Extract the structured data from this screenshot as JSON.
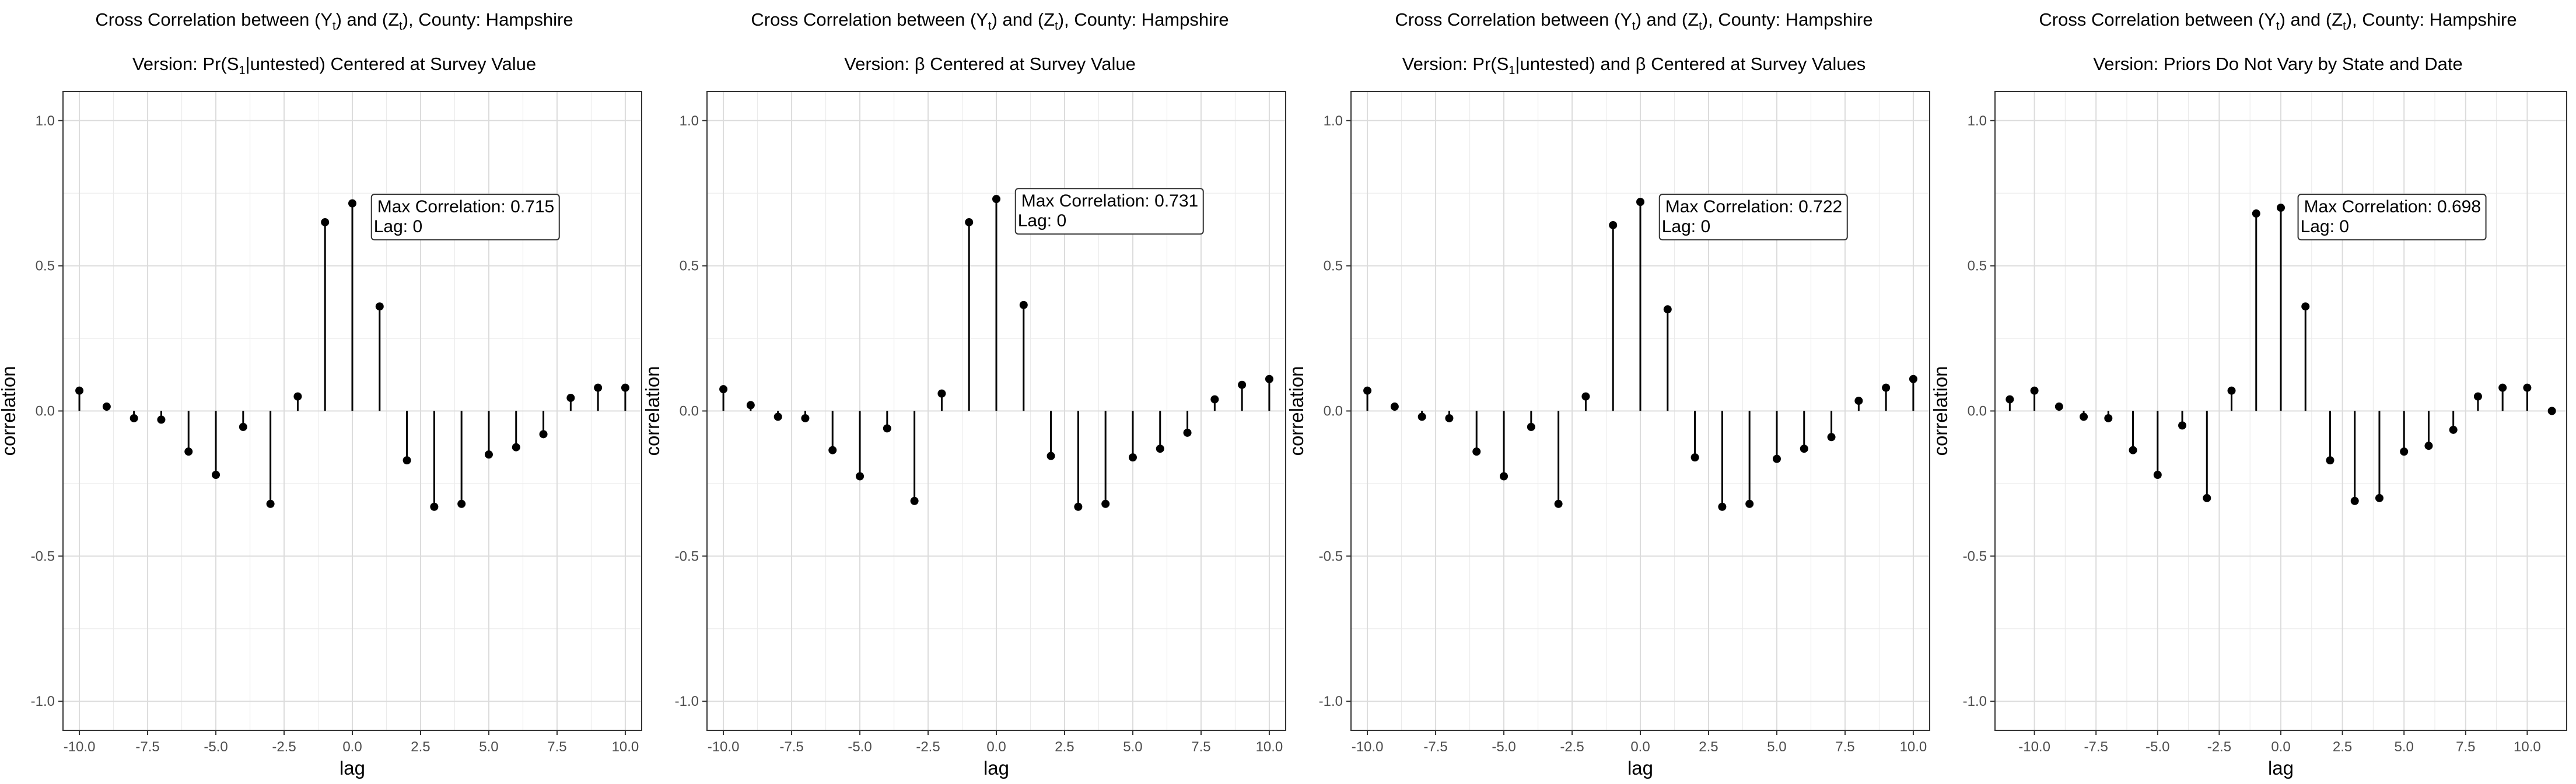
{
  "chart_data": [
    {
      "type": "stem",
      "title": "Cross Correlation between (Y_t) and (Z_t), County: Hampshire",
      "subtitle": "Version: Pr(S_1|untested) Centered at Survey Value",
      "title_parts": {
        "prefix": "Cross Correlation between (Y",
        "sub1": "t",
        "mid": ") and (Z",
        "sub2": "t",
        "suffix": "), County: Hampshire"
      },
      "subtitle_parts": {
        "prefix": "Version: Pr(S",
        "sub": "1",
        "suffix": "|untested) Centered at Survey Value"
      },
      "xlabel": "lag",
      "ylabel": "correlation",
      "xlim": [
        -10.6,
        10.6
      ],
      "ylim": [
        -1.1,
        1.1
      ],
      "x_ticks": [
        -10,
        -7.5,
        -5,
        -2.5,
        0,
        2.5,
        5,
        7.5,
        10
      ],
      "x_tick_labels": [
        "-10.0",
        "-7.5",
        "-5.0",
        "-2.5",
        "0.0",
        "2.5",
        "5.0",
        "7.5",
        "10.0"
      ],
      "y_ticks": [
        -1,
        -0.5,
        0,
        0.5,
        1
      ],
      "y_tick_labels": [
        "-1.0",
        "-0.5",
        "0.0",
        "0.5",
        "1.0"
      ],
      "grid": true,
      "x": [
        -10,
        -9,
        -8,
        -7,
        -6,
        -5,
        -4,
        -3,
        -2,
        -1,
        0,
        1,
        2,
        3,
        4,
        5,
        6,
        7,
        8,
        9,
        10
      ],
      "y": [
        0.07,
        0.015,
        -0.025,
        -0.03,
        -0.14,
        -0.22,
        -0.055,
        -0.32,
        0.05,
        0.65,
        0.715,
        0.36,
        -0.17,
        -0.33,
        -0.32,
        -0.15,
        -0.125,
        -0.08,
        0.045,
        0.08,
        0.08
      ],
      "annotation": {
        "line1": "Max Correlation: 0.715",
        "line2": "Lag: 0",
        "x": 0.7,
        "y": 0.73
      }
    },
    {
      "type": "stem",
      "title": "Cross Correlation between (Y_t) and (Z_t), County: Hampshire",
      "subtitle": "Version: β Centered at Survey Value",
      "title_parts": {
        "prefix": "Cross Correlation between (Y",
        "sub1": "t",
        "mid": ") and (Z",
        "sub2": "t",
        "suffix": "), County: Hampshire"
      },
      "subtitle_parts": {
        "prefix": "Version: β Centered at Survey Value",
        "sub": "",
        "suffix": ""
      },
      "xlabel": "lag",
      "ylabel": "correlation",
      "xlim": [
        -10.6,
        10.6
      ],
      "ylim": [
        -1.1,
        1.1
      ],
      "x_ticks": [
        -10,
        -7.5,
        -5,
        -2.5,
        0,
        2.5,
        5,
        7.5,
        10
      ],
      "x_tick_labels": [
        "-10.0",
        "-7.5",
        "-5.0",
        "-2.5",
        "0.0",
        "2.5",
        "5.0",
        "7.5",
        "10.0"
      ],
      "y_ticks": [
        -1,
        -0.5,
        0,
        0.5,
        1
      ],
      "y_tick_labels": [
        "-1.0",
        "-0.5",
        "0.0",
        "0.5",
        "1.0"
      ],
      "grid": true,
      "x": [
        -10,
        -9,
        -8,
        -7,
        -6,
        -5,
        -4,
        -3,
        -2,
        -1,
        0,
        1,
        2,
        3,
        4,
        5,
        6,
        7,
        8,
        9,
        10
      ],
      "y": [
        0.075,
        0.02,
        -0.02,
        -0.025,
        -0.135,
        -0.225,
        -0.06,
        -0.31,
        0.06,
        0.65,
        0.73,
        0.365,
        -0.155,
        -0.33,
        -0.32,
        -0.16,
        -0.13,
        -0.075,
        0.04,
        0.09,
        0.11
      ],
      "annotation": {
        "line1": "Max Correlation: 0.731",
        "line2": "Lag: 0",
        "x": 0.7,
        "y": 0.75
      }
    },
    {
      "type": "stem",
      "title": "Cross Correlation between (Y_t) and (Z_t), County: Hampshire",
      "subtitle": "Version: Pr(S_1|untested) and β Centered at Survey Values",
      "title_parts": {
        "prefix": "Cross Correlation between (Y",
        "sub1": "t",
        "mid": ") and (Z",
        "sub2": "t",
        "suffix": "), County: Hampshire"
      },
      "subtitle_parts": {
        "prefix": "Version: Pr(S",
        "sub": "1",
        "suffix": "|untested) and β Centered at Survey Values"
      },
      "xlabel": "lag",
      "ylabel": "correlation",
      "xlim": [
        -10.6,
        10.6
      ],
      "ylim": [
        -1.1,
        1.1
      ],
      "x_ticks": [
        -10,
        -7.5,
        -5,
        -2.5,
        0,
        2.5,
        5,
        7.5,
        10
      ],
      "x_tick_labels": [
        "-10.0",
        "-7.5",
        "-5.0",
        "-2.5",
        "0.0",
        "2.5",
        "5.0",
        "7.5",
        "10.0"
      ],
      "y_ticks": [
        -1,
        -0.5,
        0,
        0.5,
        1
      ],
      "y_tick_labels": [
        "-1.0",
        "-0.5",
        "0.0",
        "0.5",
        "1.0"
      ],
      "grid": true,
      "x": [
        -10,
        -9,
        -8,
        -7,
        -6,
        -5,
        -4,
        -3,
        -2,
        -1,
        0,
        1,
        2,
        3,
        4,
        5,
        6,
        7,
        8,
        9,
        10
      ],
      "y": [
        0.07,
        0.015,
        -0.02,
        -0.025,
        -0.14,
        -0.225,
        -0.055,
        -0.32,
        0.05,
        0.64,
        0.72,
        0.35,
        -0.16,
        -0.33,
        -0.32,
        -0.165,
        -0.13,
        -0.09,
        0.035,
        0.08,
        0.11
      ],
      "annotation": {
        "line1": "Max Correlation: 0.722",
        "line2": "Lag: 0",
        "x": 0.7,
        "y": 0.73
      }
    },
    {
      "type": "stem",
      "title": "Cross Correlation between (Y_t) and (Z_t), County: Hampshire",
      "subtitle": "Version: Priors Do Not Vary by State and Date",
      "title_parts": {
        "prefix": "Cross Correlation between (Y",
        "sub1": "t",
        "mid": ") and (Z",
        "sub2": "t",
        "suffix": "), County: Hampshire"
      },
      "subtitle_parts": {
        "prefix": "Version: Priors Do Not Vary by State and Date",
        "sub": "",
        "suffix": ""
      },
      "xlabel": "lag",
      "ylabel": "correlation",
      "xlim": [
        -11.6,
        11.6
      ],
      "ylim": [
        -1.1,
        1.1
      ],
      "x_ticks": [
        -10,
        -7.5,
        -5,
        -2.5,
        0,
        2.5,
        5,
        7.5,
        10
      ],
      "x_tick_labels": [
        "-10.0",
        "-7.5",
        "-5.0",
        "-2.5",
        "0.0",
        "2.5",
        "5.0",
        "7.5",
        "10.0"
      ],
      "y_ticks": [
        -1,
        -0.5,
        0,
        0.5,
        1
      ],
      "y_tick_labels": [
        "-1.0",
        "-0.5",
        "0.0",
        "0.5",
        "1.0"
      ],
      "grid": true,
      "x": [
        -11,
        -10,
        -9,
        -8,
        -7,
        -6,
        -5,
        -4,
        -3,
        -2,
        -1,
        0,
        1,
        2,
        3,
        4,
        5,
        6,
        7,
        8,
        9,
        10,
        11
      ],
      "y": [
        0.04,
        0.07,
        0.015,
        -0.02,
        -0.025,
        -0.135,
        -0.22,
        -0.05,
        -0.3,
        0.07,
        0.68,
        0.7,
        0.36,
        -0.17,
        -0.31,
        -0.3,
        -0.14,
        -0.12,
        -0.065,
        0.05,
        0.08,
        0.08,
        0.0
      ],
      "annotation": {
        "line1": "Max Correlation: 0.698",
        "line2": "Lag: 0",
        "x": 0.7,
        "y": 0.73
      }
    }
  ]
}
